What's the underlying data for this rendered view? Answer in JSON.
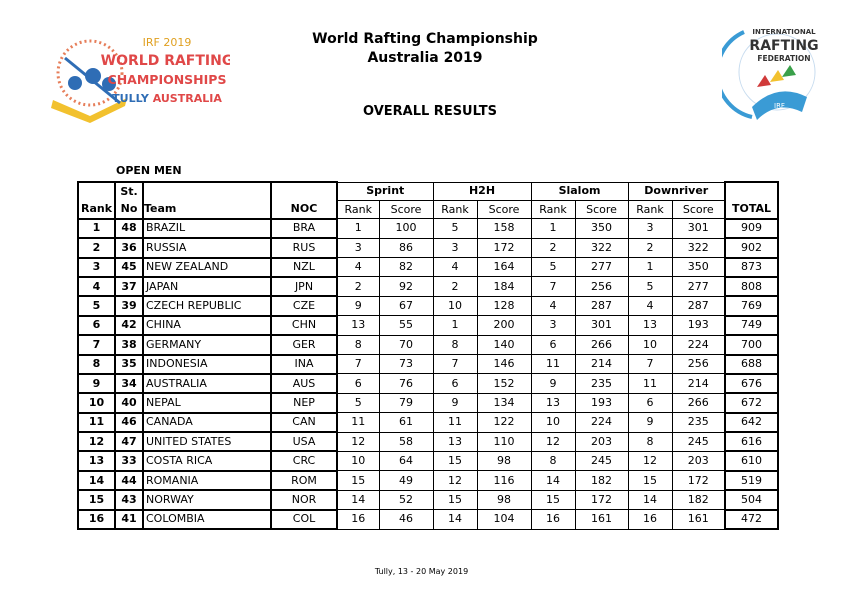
{
  "header": {
    "title": "World Rafting Championship",
    "subtitle": "Australia 2019",
    "section": "OVERALL RESULTS",
    "left_logo": {
      "line1": "IRF 2019",
      "line2": "WORLD RAFTING",
      "line3": "CHAMPIONSHIPS",
      "line4": "TULLY AUSTRALIA"
    },
    "right_logo": {
      "line1": "INTERNATIONAL",
      "line2": "RAFTING",
      "line3": "FEDERATION",
      "badge": "IRF"
    }
  },
  "category": "OPEN MEN",
  "columns": {
    "rank": "Rank",
    "st_top": "St.",
    "st_bottom": "No",
    "team": "Team",
    "noc": "NOC",
    "sprint": "Sprint",
    "h2h": "H2H",
    "slalom": "Slalom",
    "downriver": "Downriver",
    "sub_rank": "Rank",
    "sub_score": "Score",
    "total": "TOTAL"
  },
  "rows": [
    [
      "1",
      "48",
      "BRAZIL",
      "BRA",
      "1",
      "100",
      "5",
      "158",
      "1",
      "350",
      "3",
      "301",
      "909"
    ],
    [
      "2",
      "36",
      "RUSSIA",
      "RUS",
      "3",
      "86",
      "3",
      "172",
      "2",
      "322",
      "2",
      "322",
      "902"
    ],
    [
      "3",
      "45",
      "NEW ZEALAND",
      "NZL",
      "4",
      "82",
      "4",
      "164",
      "5",
      "277",
      "1",
      "350",
      "873"
    ],
    [
      "4",
      "37",
      "JAPAN",
      "JPN",
      "2",
      "92",
      "2",
      "184",
      "7",
      "256",
      "5",
      "277",
      "808"
    ],
    [
      "5",
      "39",
      "CZECH REPUBLIC",
      "CZE",
      "9",
      "67",
      "10",
      "128",
      "4",
      "287",
      "4",
      "287",
      "769"
    ],
    [
      "6",
      "42",
      "CHINA",
      "CHN",
      "13",
      "55",
      "1",
      "200",
      "3",
      "301",
      "13",
      "193",
      "749"
    ],
    [
      "7",
      "38",
      "GERMANY",
      "GER",
      "8",
      "70",
      "8",
      "140",
      "6",
      "266",
      "10",
      "224",
      "700"
    ],
    [
      "8",
      "35",
      "INDONESIA",
      "INA",
      "7",
      "73",
      "7",
      "146",
      "11",
      "214",
      "7",
      "256",
      "688"
    ],
    [
      "9",
      "34",
      "AUSTRALIA",
      "AUS",
      "6",
      "76",
      "6",
      "152",
      "9",
      "235",
      "11",
      "214",
      "676"
    ],
    [
      "10",
      "40",
      "NEPAL",
      "NEP",
      "5",
      "79",
      "9",
      "134",
      "13",
      "193",
      "6",
      "266",
      "672"
    ],
    [
      "11",
      "46",
      "CANADA",
      "CAN",
      "11",
      "61",
      "11",
      "122",
      "10",
      "224",
      "9",
      "235",
      "642"
    ],
    [
      "12",
      "47",
      "UNITED STATES",
      "USA",
      "12",
      "58",
      "13",
      "110",
      "12",
      "203",
      "8",
      "245",
      "616"
    ],
    [
      "13",
      "33",
      "COSTA RICA",
      "CRC",
      "10",
      "64",
      "15",
      "98",
      "8",
      "245",
      "12",
      "203",
      "610"
    ],
    [
      "14",
      "44",
      "ROMANIA",
      "ROM",
      "15",
      "49",
      "12",
      "116",
      "14",
      "182",
      "15",
      "172",
      "519"
    ],
    [
      "15",
      "43",
      "NORWAY",
      "NOR",
      "14",
      "52",
      "15",
      "98",
      "15",
      "172",
      "14",
      "182",
      "504"
    ],
    [
      "16",
      "41",
      "COLOMBIA",
      "COL",
      "16",
      "46",
      "14",
      "104",
      "16",
      "161",
      "16",
      "161",
      "472"
    ]
  ],
  "footer": "Tully, 13 - 20 May 2019"
}
